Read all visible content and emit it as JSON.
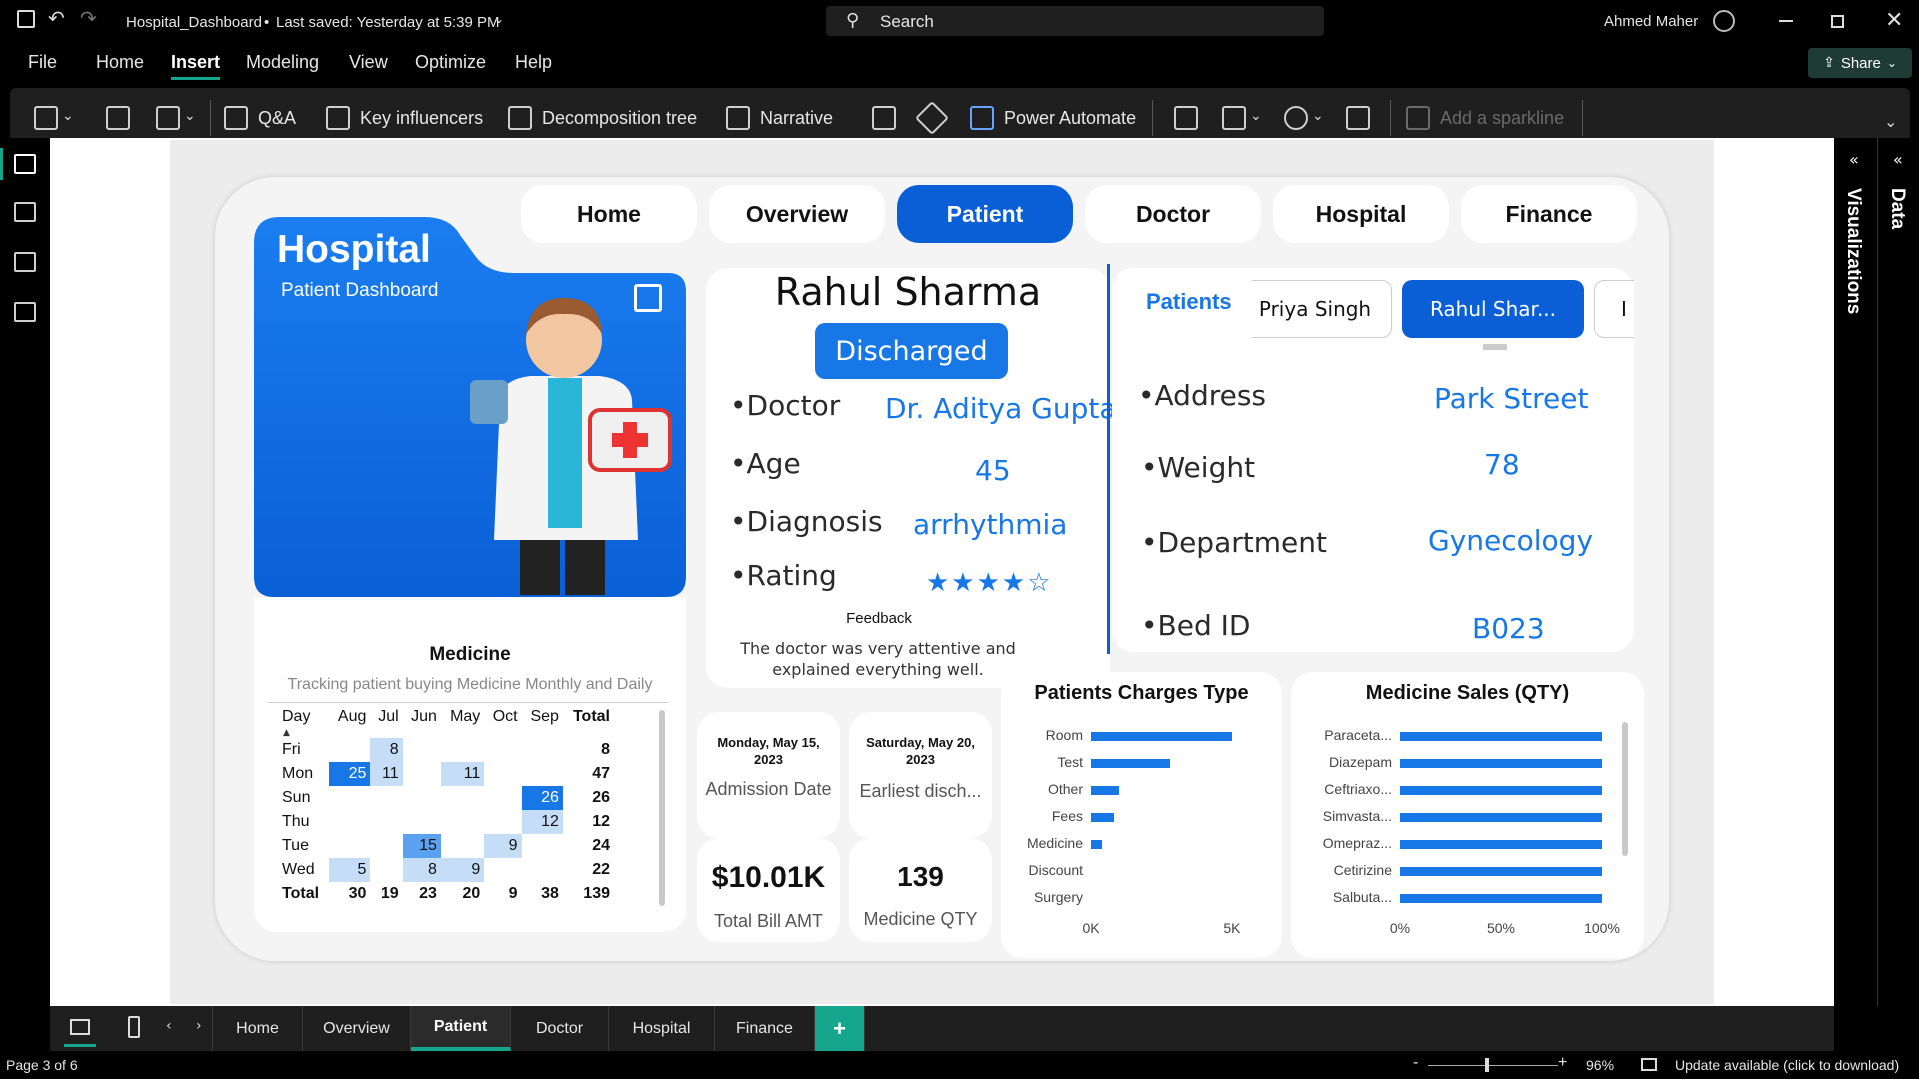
{
  "titlebar": {
    "doc_name": "Hospital_Dashboard",
    "saved_status": "Last saved: Yesterday at 5:39 PM",
    "search_placeholder": "Search",
    "user_name": "Ahmed Maher"
  },
  "menu": {
    "items": [
      "File",
      "Home",
      "Insert",
      "Modeling",
      "View",
      "Optimize",
      "Help"
    ],
    "active": "Insert",
    "share_label": "Share"
  },
  "ribbon": {
    "qa": "Q&A",
    "key_influencers": "Key influencers",
    "decomposition_tree": "Decomposition tree",
    "narrative": "Narrative",
    "power_automate": "Power Automate",
    "add_sparkline": "Add a sparkline"
  },
  "panes": {
    "visualizations": "Visualizations",
    "data": "Data"
  },
  "page_tabs": [
    "Home",
    "Overview",
    "Patient",
    "Doctor",
    "Hospital",
    "Finance"
  ],
  "active_page": "Patient",
  "status": {
    "page": "Page 3 of 6",
    "zoom": "96%",
    "update": "Update available (click to download)"
  },
  "report": {
    "nav": [
      "Home",
      "Overview",
      "Patient",
      "Doctor",
      "Hospital",
      "Finance"
    ],
    "hero": {
      "title": "Hospital",
      "subtitle": "Patient Dashboard"
    },
    "patient": {
      "name": "Rahul Sharma",
      "status": "Discharged",
      "doctor_label": "•Doctor",
      "doctor": "Dr. Aditya Gupta",
      "age_label": "•Age",
      "age": "45",
      "diagnosis_label": "•Diagnosis",
      "diagnosis": "arrhythmia",
      "rating_label": "•Rating",
      "rating_stars": "★★★★☆",
      "feedback_label": "Feedback",
      "feedback": "The doctor was very attentive and explained everything well."
    },
    "slicer": {
      "label": "Patients",
      "prev": "Priya Singh",
      "current": "Rahul Shar...",
      "next": "I"
    },
    "details": {
      "address_label": "•Address",
      "address": "Park Street",
      "weight_label": "•Weight",
      "weight": "78",
      "department_label": "•Department",
      "department": "Gynecology",
      "bed_label": "•Bed ID",
      "bed": "B023"
    },
    "medicine": {
      "title": "Medicine",
      "subtitle": "Tracking patient buying Medicine Monthly and Daily",
      "headers": [
        "Day",
        "Aug",
        "Jul",
        "Jun",
        "May",
        "Oct",
        "Sep",
        "Total"
      ],
      "rows": [
        [
          "Fri",
          "",
          "8",
          "",
          "",
          "",
          "",
          "8"
        ],
        [
          "Mon",
          "25",
          "11",
          "",
          "11",
          "",
          "",
          "47"
        ],
        [
          "Sun",
          "",
          "",
          "",
          "",
          "",
          "26",
          "26"
        ],
        [
          "Thu",
          "",
          "",
          "",
          "",
          "",
          "12",
          "12"
        ],
        [
          "Tue",
          "",
          "",
          "15",
          "",
          "9",
          "",
          "24"
        ],
        [
          "Wed",
          "5",
          "",
          "8",
          "9",
          "",
          "",
          "22"
        ],
        [
          "Total",
          "30",
          "19",
          "23",
          "20",
          "9",
          "38",
          "139"
        ]
      ]
    },
    "kpis": {
      "admission_date": "Monday, May 15, 2023",
      "admission_label": "Admission Date",
      "discharge_date": "Saturday, May 20, 2023",
      "discharge_label": "Earliest disch...",
      "total_bill": "$10.01K",
      "total_bill_label": "Total Bill AMT",
      "medicine_qty": "139",
      "medicine_qty_label": "Medicine QTY"
    }
  },
  "chart_data": [
    {
      "type": "bar",
      "title": "Patients Charges Type",
      "categories": [
        "Room",
        "Test",
        "Other",
        "Fees",
        "Medicine",
        "Discount",
        "Surgery"
      ],
      "values": [
        5000,
        2800,
        1000,
        800,
        400,
        0,
        0
      ],
      "xticks": [
        "0K",
        "5K"
      ],
      "xlim": [
        0,
        5500
      ]
    },
    {
      "type": "bar",
      "title": "Medicine Sales (QTY)",
      "categories": [
        "Paraceta...",
        "Diazepam",
        "Ceftriaxo...",
        "Simvasta...",
        "Omepraz...",
        "Cetirizine",
        "Salbuta..."
      ],
      "values": [
        100,
        100,
        100,
        100,
        100,
        100,
        100
      ],
      "xticks": [
        "0%",
        "50%",
        "100%"
      ],
      "xlim": [
        0,
        100
      ]
    }
  ]
}
